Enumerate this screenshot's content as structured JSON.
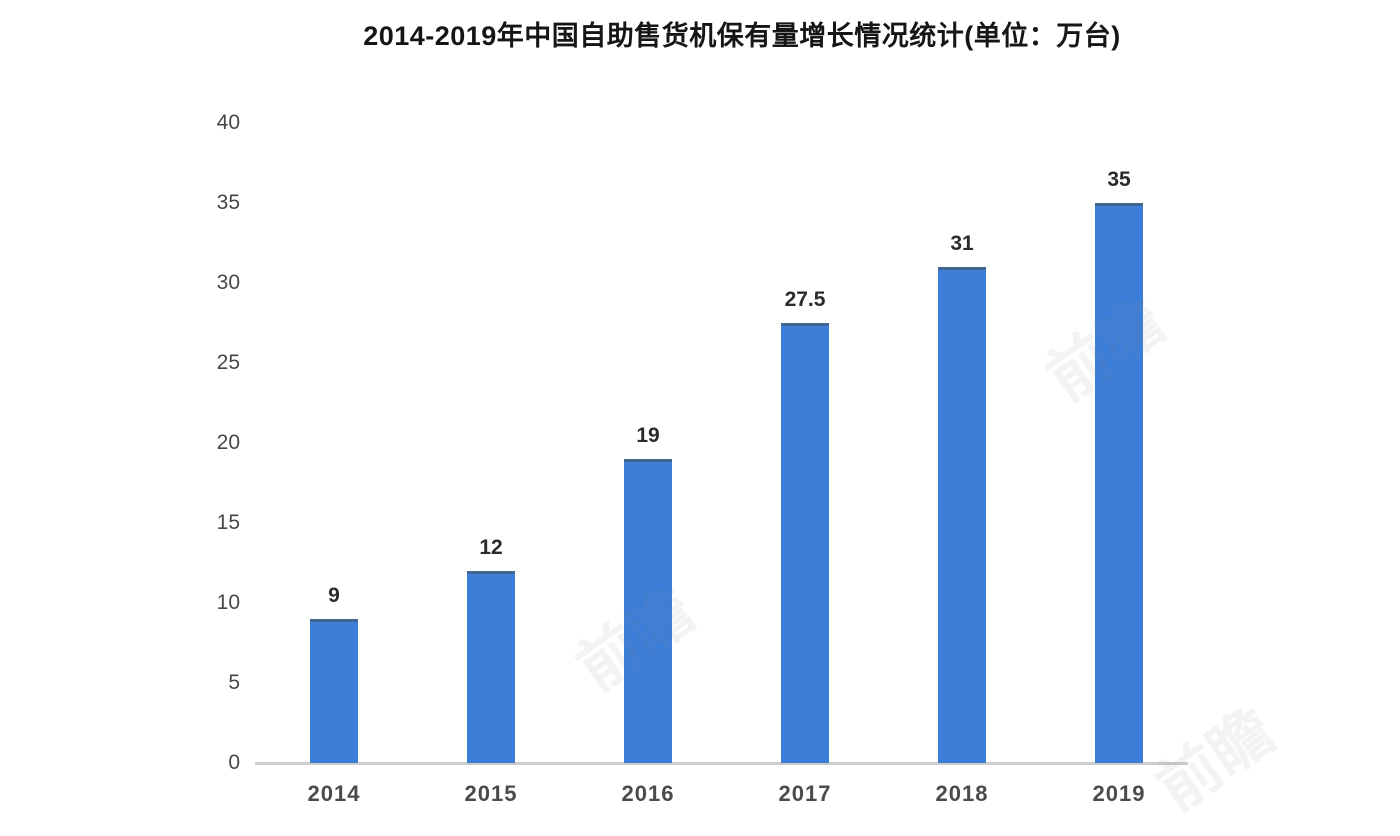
{
  "chart_data": {
    "type": "bar",
    "title": "2014-2019年中国自助售货机保有量增长情况统计(单位：万台)",
    "categories": [
      "2014",
      "2015",
      "2016",
      "2017",
      "2018",
      "2019"
    ],
    "values": [
      9,
      12,
      19,
      27.5,
      31,
      35
    ],
    "value_labels": [
      "9",
      "12",
      "19",
      "27.5",
      "31",
      "35"
    ],
    "xlabel": "",
    "ylabel": "",
    "ylim": [
      0,
      40
    ],
    "yticks": [
      0,
      5,
      10,
      15,
      20,
      25,
      30,
      35,
      40
    ],
    "grid": false,
    "legend": false,
    "bar_color": "#3c7dd8",
    "axis_line_color": "#cccccc",
    "tick_label_color": "#474747",
    "value_label_color": "#2b2b2b",
    "title_color": "#161616"
  },
  "watermark": {
    "text": "前瞻"
  }
}
